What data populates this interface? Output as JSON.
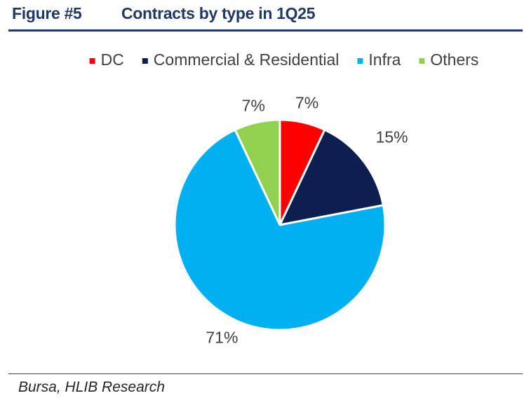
{
  "header": {
    "figure_number": "Figure #5",
    "title": "Contracts by type in 1Q25"
  },
  "chart_data": {
    "type": "pie",
    "title": "Contracts by type in 1Q25",
    "categories": [
      "DC",
      "Commercial & Residential",
      "Infra",
      "Others"
    ],
    "values": [
      7,
      15,
      71,
      7
    ],
    "labels": [
      "7%",
      "15%",
      "71%",
      "7%"
    ],
    "colors": [
      "#ff0000",
      "#0d1f4f",
      "#00b0f0",
      "#92d050"
    ],
    "legend_placement": "top",
    "start_angle_deg": 0,
    "direction": "clockwise"
  },
  "footer": {
    "source": "Bursa, HLIB Research"
  }
}
